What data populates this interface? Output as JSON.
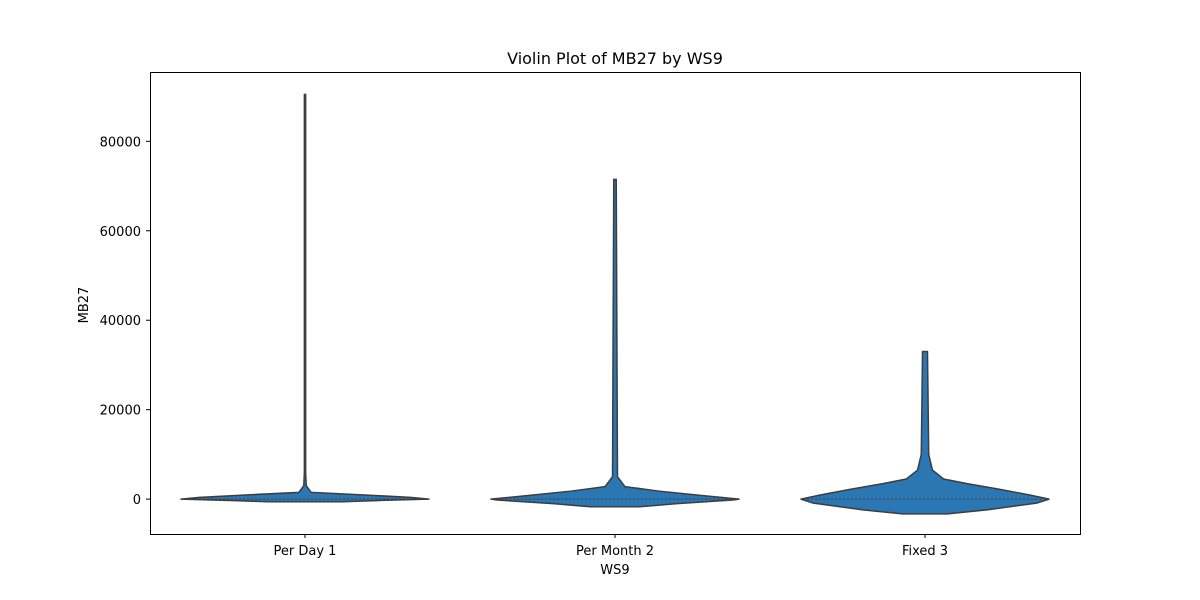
{
  "chart_data": {
    "type": "violin",
    "title": "Violin Plot of MB27 by WS9",
    "xlabel": "WS9",
    "ylabel": "MB27",
    "categories": [
      "Per Day 1",
      "Per Month 2",
      "Fixed 3"
    ],
    "ylim": [
      -7800,
      95500
    ],
    "yticks": [
      0,
      20000,
      40000,
      60000,
      80000
    ],
    "fill_color": "#2a77b4",
    "edge_color": "#3d3d3d",
    "violins": [
      {
        "category": "Per Day 1",
        "min": -600,
        "max": 90500,
        "median": 0,
        "density": [
          [
            -600,
            0.3
          ],
          [
            -300,
            0.6
          ],
          [
            0,
            1.0
          ],
          [
            400,
            0.85
          ],
          [
            900,
            0.5
          ],
          [
            1500,
            0.05
          ],
          [
            3000,
            0.01
          ],
          [
            6000,
            0.005
          ],
          [
            90500,
            0.005
          ]
        ]
      },
      {
        "category": "Per Month 2",
        "min": -1700,
        "max": 71500,
        "median": 0,
        "density": [
          [
            -1700,
            0.2
          ],
          [
            -1000,
            0.5
          ],
          [
            -200,
            0.95
          ],
          [
            0,
            1.0
          ],
          [
            800,
            0.7
          ],
          [
            1800,
            0.35
          ],
          [
            2800,
            0.08
          ],
          [
            5000,
            0.02
          ],
          [
            71500,
            0.01
          ]
        ]
      },
      {
        "category": "Fixed 3",
        "min": -3300,
        "max": 33000,
        "median": 0,
        "density": [
          [
            -3300,
            0.18
          ],
          [
            -2400,
            0.5
          ],
          [
            -900,
            0.9
          ],
          [
            0,
            1.0
          ],
          [
            900,
            0.85
          ],
          [
            2200,
            0.6
          ],
          [
            3400,
            0.35
          ],
          [
            4500,
            0.15
          ],
          [
            6500,
            0.06
          ],
          [
            10000,
            0.03
          ],
          [
            33000,
            0.02
          ]
        ]
      }
    ]
  }
}
